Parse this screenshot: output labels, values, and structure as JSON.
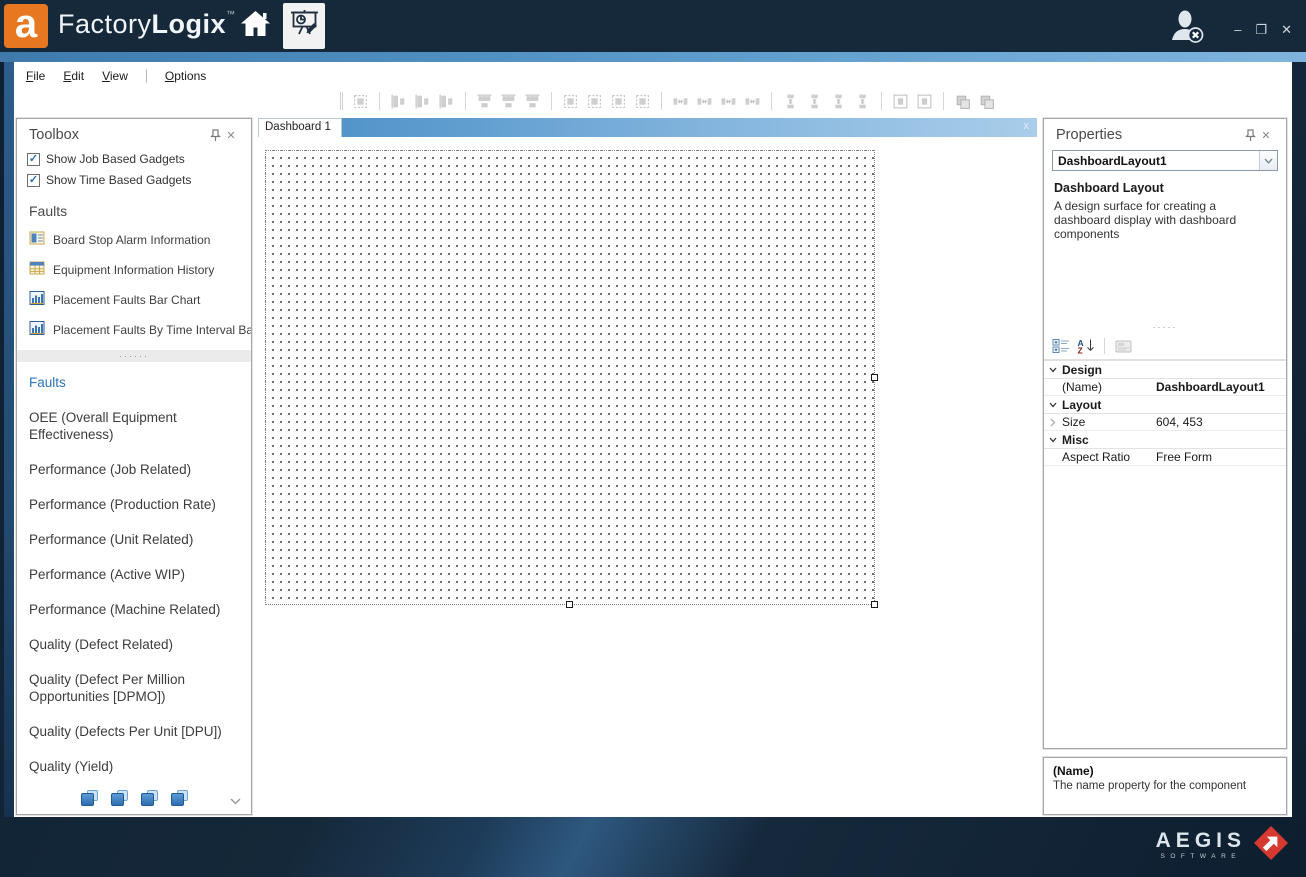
{
  "colors": {
    "titlebar_bg": "#16293b",
    "logo_orange": "#e87722",
    "accent_blue": "#4f8fc0",
    "selected_category_blue": "#2d76b8",
    "tabstrip_blue": "#4a8dc5",
    "aegis_red": "#d6392f"
  },
  "titlebar": {
    "logo_letter": "a",
    "brand_primary": "Factory",
    "brand_secondary": "Logix",
    "trademark": "™"
  },
  "window_controls": {
    "minimize": "–",
    "maximize": "❐",
    "close": "✕"
  },
  "menubar": {
    "items": [
      "File",
      "Edit",
      "View",
      "Options"
    ]
  },
  "toolbar": {
    "groups": [
      [
        "size-to-grid"
      ],
      [
        "align-lefts",
        "align-centers",
        "align-rights"
      ],
      [
        "align-tops",
        "align-middles",
        "align-bottoms"
      ],
      [
        "make-same-width",
        "make-same-height",
        "make-same-size",
        "size-to-control"
      ],
      [
        "make-horizontal-spacing-equal",
        "increase-horizontal-spacing",
        "decrease-horizontal-spacing",
        "remove-horizontal-spacing"
      ],
      [
        "make-vertical-spacing-equal",
        "increase-vertical-spacing",
        "decrease-vertical-spacing",
        "remove-vertical-spacing"
      ],
      [
        "center-horizontally",
        "center-vertically"
      ],
      [
        "bring-to-front",
        "send-to-back"
      ]
    ]
  },
  "toolbox": {
    "title": "Toolbox",
    "checkboxes": [
      {
        "label": "Show Job Based Gadgets",
        "checked": true
      },
      {
        "label": "Show Time Based Gadgets",
        "checked": true
      }
    ],
    "section_header": "Faults",
    "gadgets": [
      {
        "icon": "board-stop-alarm",
        "label": "Board Stop Alarm Information"
      },
      {
        "icon": "equipment-info-history",
        "label": "Equipment Information History"
      },
      {
        "icon": "bar-chart",
        "label": "Placement Faults Bar Chart"
      },
      {
        "icon": "bar-chart",
        "label": "Placement Faults By Time Interval Bar..."
      }
    ],
    "splitter_dots": "······",
    "categories": [
      {
        "label": "Faults",
        "selected": true
      },
      {
        "label": "OEE (Overall Equipment Effectiveness)",
        "selected": false
      },
      {
        "label": "Performance (Job Related)",
        "selected": false
      },
      {
        "label": "Performance (Production Rate)",
        "selected": false
      },
      {
        "label": "Performance (Unit Related)",
        "selected": false
      },
      {
        "label": "Performance (Active WIP)",
        "selected": false
      },
      {
        "label": "Performance (Machine Related)",
        "selected": false
      },
      {
        "label": "Quality (Defect Related)",
        "selected": false
      },
      {
        "label": "Quality (Defect Per Million Opportunities [DPMO])",
        "selected": false
      },
      {
        "label": "Quality (Defects Per Unit [DPU])",
        "selected": false
      },
      {
        "label": "Quality (Yield)",
        "selected": false
      }
    ]
  },
  "tabs": {
    "active": "Dashboard 1",
    "close": "x"
  },
  "canvas": {
    "surface_size": "604, 453"
  },
  "properties": {
    "title": "Properties",
    "selected_object": "DashboardLayout1",
    "object_type": "Dashboard Layout",
    "object_description": "A design surface for creating a dashboard display with dashboard components",
    "splitter_dots": "·····",
    "grid": [
      {
        "type": "category",
        "label": "Design"
      },
      {
        "type": "row",
        "label": "(Name)",
        "value": "DashboardLayout1",
        "value_bold": true,
        "expandable": false
      },
      {
        "type": "category",
        "label": "Layout"
      },
      {
        "type": "row",
        "label": "Size",
        "value": "604, 453",
        "value_bold": false,
        "expandable": true
      },
      {
        "type": "category",
        "label": "Misc"
      },
      {
        "type": "row",
        "label": "Aspect Ratio",
        "value": "Free Form",
        "value_bold": false,
        "expandable": false
      }
    ],
    "help": {
      "title": "(Name)",
      "description": "The name property for the component"
    }
  },
  "footer": {
    "brand": "AEGIS",
    "sub": "SOFTWARE"
  }
}
